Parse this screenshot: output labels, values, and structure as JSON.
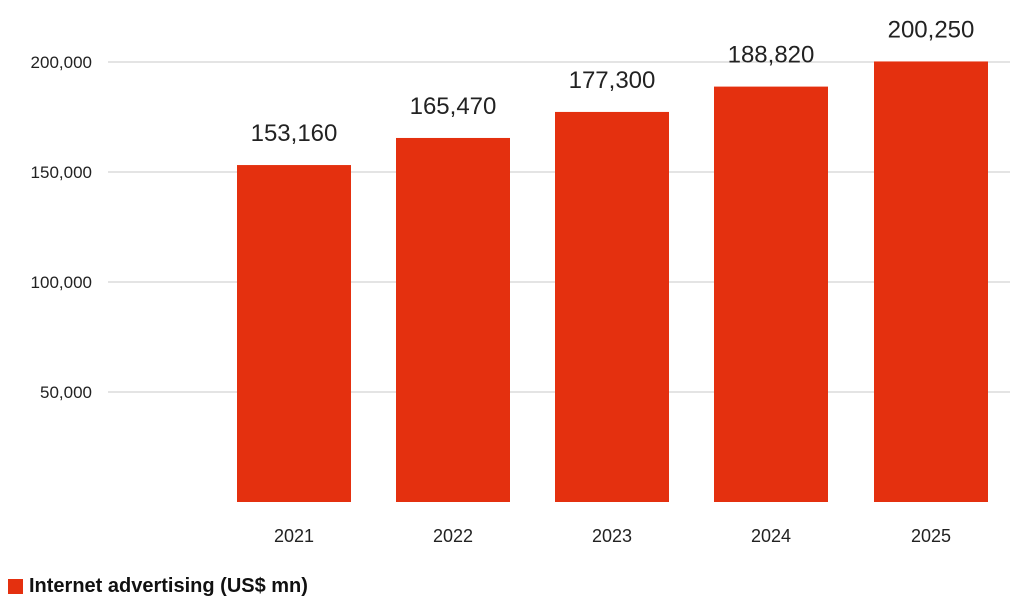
{
  "chart_data": {
    "type": "bar",
    "categories": [
      "2021",
      "2022",
      "2023",
      "2024",
      "2025"
    ],
    "series": [
      {
        "name": "Internet advertising (US$ mn)",
        "values": [
          153160,
          165470,
          177300,
          188820,
          200250
        ]
      }
    ],
    "data_labels": [
      "153,160",
      "165,470",
      "177,300",
      "188,820",
      "200,250"
    ],
    "y_ticks": [
      50000,
      100000,
      150000,
      200000
    ],
    "y_tick_labels": [
      "50,000",
      "100,000",
      "150,000",
      "200,000"
    ],
    "ylim": [
      0,
      200000
    ],
    "grid": true,
    "legend_position": "bottom-left",
    "bar_color": "#e4300f",
    "grid_color": "#c8c8c8"
  },
  "legend": {
    "label": "Internet advertising (US$ mn)"
  }
}
